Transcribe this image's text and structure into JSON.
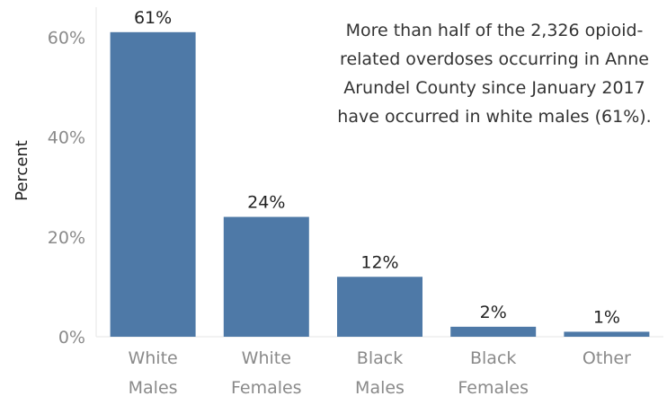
{
  "chart_data": {
    "type": "bar",
    "categories": [
      [
        "White",
        "Males"
      ],
      [
        "White",
        "Females"
      ],
      [
        "Black",
        "Males"
      ],
      [
        "Black",
        "Females"
      ],
      [
        "Other"
      ]
    ],
    "values": [
      61,
      24,
      12,
      2,
      1
    ],
    "data_labels": [
      "61%",
      "24%",
      "12%",
      "2%",
      "1%"
    ],
    "ylabel": "Percent",
    "ylim": [
      0,
      66
    ],
    "y_ticks": [
      0,
      20,
      40,
      60
    ],
    "y_tick_labels": [
      "0%",
      "20%",
      "40%",
      "60%"
    ],
    "grid": false,
    "bar_color": "#4e79a7",
    "annotation": "More than half of the 2,326 opioid-related overdoses occurring in Anne Arundel County since January 2017 have occurred in white males (61%)."
  }
}
